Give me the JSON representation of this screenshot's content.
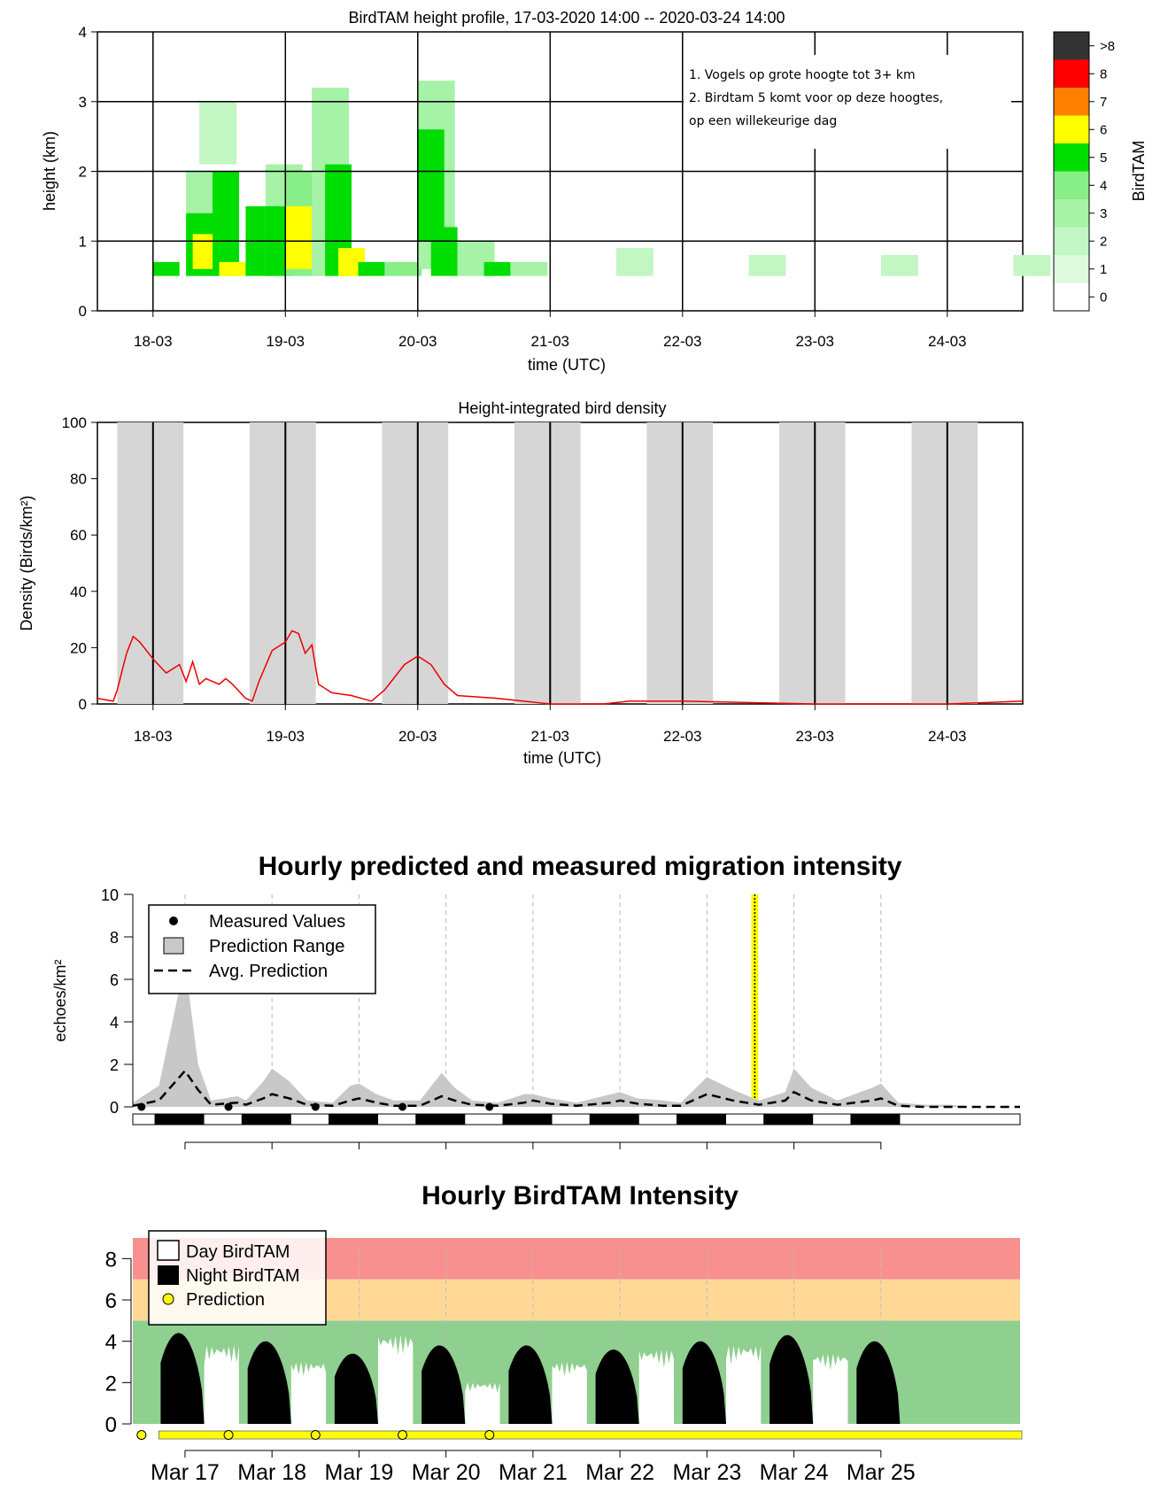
{
  "chart_data": [
    {
      "type": "heatmap",
      "title": "BirdTAM height profile, 17-03-2020 14:00  --  2020-03-24 14:00",
      "xlabel": "time (UTC)",
      "ylabel": "height (km)",
      "x_ticks": [
        "18-03",
        "19-03",
        "20-03",
        "21-03",
        "22-03",
        "23-03",
        "24-03"
      ],
      "y_ticks": [
        "0",
        "1",
        "2",
        "3",
        "4"
      ],
      "ylim": [
        0,
        4
      ],
      "grid": true,
      "colorbar": {
        "label": "BirdTAM",
        "levels": [
          ">8",
          "8",
          "7",
          "6",
          "5",
          "4",
          "3",
          "2",
          "1",
          "0"
        ],
        "colors": [
          "#333333",
          "#ff0000",
          "#ff8000",
          "#ffff00",
          "#00dd00",
          "#88ee88",
          "#a6f2a6",
          "#c2f6c2",
          "#def9de",
          "#ffffff"
        ]
      },
      "annotations": [
        "1. Vogels op grote hoogte tot 3+ km",
        "2. Birdtam 5 komt voor op deze hoogtes,",
        "op een willekeurige dag"
      ],
      "cells": [
        {
          "t": 0.0,
          "h0": 0.5,
          "h1": 0.7,
          "level": 5
        },
        {
          "t": 0.25,
          "h0": 0.5,
          "h1": 2.0,
          "level": 3
        },
        {
          "t": 0.25,
          "h0": 0.5,
          "h1": 1.4,
          "level": 5
        },
        {
          "t": 0.3,
          "h0": 0.6,
          "h1": 1.1,
          "level": 6
        },
        {
          "t": 0.35,
          "h0": 2.1,
          "h1": 3.0,
          "level": 2
        },
        {
          "t": 0.45,
          "h0": 0.5,
          "h1": 2.0,
          "level": 5
        },
        {
          "t": 0.5,
          "h0": 0.5,
          "h1": 0.7,
          "level": 6
        },
        {
          "t": 0.7,
          "h0": 0.5,
          "h1": 1.5,
          "level": 5
        },
        {
          "t": 0.85,
          "h0": 0.5,
          "h1": 2.1,
          "level": 3
        },
        {
          "t": 0.85,
          "h0": 0.5,
          "h1": 1.5,
          "level": 5
        },
        {
          "t": 1.0,
          "h0": 0.5,
          "h1": 2.0,
          "level": 4
        },
        {
          "t": 1.0,
          "h0": 0.6,
          "h1": 1.5,
          "level": 6
        },
        {
          "t": 1.2,
          "h0": 0.5,
          "h1": 3.2,
          "level": 3
        },
        {
          "t": 1.3,
          "h0": 0.5,
          "h1": 2.1,
          "level": 5
        },
        {
          "t": 1.4,
          "h0": 0.5,
          "h1": 0.9,
          "level": 6
        },
        {
          "t": 1.55,
          "h0": 0.5,
          "h1": 0.7,
          "level": 5
        },
        {
          "t": 1.75,
          "h0": 0.5,
          "h1": 0.7,
          "level": 4
        },
        {
          "t": 2.0,
          "h0": 0.6,
          "h1": 3.3,
          "level": 3
        },
        {
          "t": 2.0,
          "h0": 1.0,
          "h1": 2.6,
          "level": 5
        },
        {
          "t": 2.1,
          "h0": 0.5,
          "h1": 1.2,
          "level": 5
        },
        {
          "t": 2.3,
          "h0": 0.5,
          "h1": 1.0,
          "level": 3
        },
        {
          "t": 2.5,
          "h0": 0.5,
          "h1": 0.7,
          "level": 5
        },
        {
          "t": 2.7,
          "h0": 0.5,
          "h1": 0.7,
          "level": 3
        },
        {
          "t": 3.5,
          "h0": 0.5,
          "h1": 0.9,
          "level": 2
        },
        {
          "t": 4.5,
          "h0": 0.5,
          "h1": 0.8,
          "level": 2
        },
        {
          "t": 5.5,
          "h0": 0.5,
          "h1": 0.8,
          "level": 2
        },
        {
          "t": 6.5,
          "h0": 0.5,
          "h1": 0.8,
          "level": 2
        }
      ]
    },
    {
      "type": "line",
      "title": "Height-integrated bird density",
      "xlabel": "time (UTC)",
      "ylabel": "Density (Birds/km²)",
      "x_ticks": [
        "18-03",
        "19-03",
        "20-03",
        "21-03",
        "22-03",
        "23-03",
        "24-03"
      ],
      "y_ticks": [
        "0",
        "20",
        "40",
        "60",
        "80",
        "100"
      ],
      "ylim": [
        0,
        100
      ],
      "night_bands": [
        [
          -0.27,
          0.23
        ],
        [
          0.73,
          1.23
        ],
        [
          1.73,
          2.23
        ],
        [
          2.73,
          3.23
        ],
        [
          3.73,
          4.23
        ],
        [
          4.73,
          5.23
        ],
        [
          5.73,
          6.23
        ]
      ],
      "series": [
        {
          "color": "#ee0000",
          "x": [
            -0.42,
            -0.3,
            -0.27,
            -0.2,
            -0.15,
            -0.1,
            -0.05,
            0.0,
            0.1,
            0.2,
            0.25,
            0.3,
            0.35,
            0.4,
            0.45,
            0.5,
            0.55,
            0.6,
            0.7,
            0.75,
            0.8,
            0.9,
            1.0,
            1.05,
            1.1,
            1.15,
            1.2,
            1.25,
            1.35,
            1.5,
            1.65,
            1.75,
            1.9,
            2.0,
            2.1,
            2.2,
            2.3,
            2.6,
            3.0,
            3.2,
            3.4,
            3.6,
            4.0,
            5.0,
            6.0,
            6.57
          ],
          "y": [
            2,
            1,
            5,
            18,
            24,
            22,
            19,
            16,
            11,
            14,
            8,
            15,
            7,
            9,
            8,
            7,
            9,
            7,
            2,
            1,
            8,
            19,
            22,
            26,
            25,
            18,
            21,
            7,
            4,
            3,
            1,
            5,
            14,
            17,
            14,
            7,
            3,
            2,
            0,
            0,
            0,
            1,
            1,
            0,
            0,
            1
          ]
        }
      ]
    },
    {
      "type": "area",
      "title": "Hourly predicted and measured migration intensity",
      "ylabel": "echoes/km²",
      "y_ticks": [
        "0",
        "2",
        "4",
        "6",
        "8",
        "10"
      ],
      "ylim": [
        0,
        10
      ],
      "legend": {
        "placement": "top-left",
        "items": [
          "Measured Values",
          "Prediction Range",
          "Avg. Prediction"
        ]
      },
      "current_time_marker": 6.55,
      "x": [
        -0.6,
        -0.3,
        0.0,
        0.15,
        0.3,
        0.6,
        0.7,
        0.9,
        1.0,
        1.2,
        1.4,
        1.7,
        1.9,
        2.0,
        2.2,
        2.4,
        2.7,
        2.95,
        3.1,
        3.3,
        3.6,
        3.9,
        4.0,
        4.2,
        4.5,
        4.9,
        5.0,
        5.2,
        5.5,
        5.7,
        6.0,
        6.3,
        6.6,
        6.9,
        7.0,
        7.2,
        7.5,
        7.9,
        8.0,
        8.2,
        8.5,
        8.8,
        9.0,
        9.3,
        9.6
      ],
      "series": [
        {
          "name": "Measured Values",
          "x": [
            -0.5,
            0.5,
            1.5,
            2.5,
            3.5
          ],
          "values": [
            0.0,
            0.0,
            0.0,
            0.0,
            0.0
          ]
        },
        {
          "name": "Prediction Range",
          "low": [
            0,
            0,
            0,
            0,
            0,
            0,
            0,
            0,
            0,
            0,
            0,
            0,
            0,
            0,
            0,
            0,
            0,
            0,
            0,
            0,
            0,
            0,
            0,
            0,
            0,
            0,
            0,
            0,
            0,
            0,
            0,
            0,
            0,
            0,
            0,
            0,
            0,
            0,
            0,
            0,
            0,
            0,
            0,
            0,
            0
          ],
          "high": [
            0.2,
            1.0,
            6.8,
            2.0,
            0.3,
            0.5,
            0.3,
            1.2,
            1.8,
            1.2,
            0.3,
            0.2,
            1.0,
            1.1,
            0.6,
            0.3,
            0.3,
            1.6,
            0.9,
            0.3,
            0.2,
            0.6,
            0.6,
            0.4,
            0.2,
            0.6,
            0.7,
            0.4,
            0.3,
            0.2,
            1.4,
            0.8,
            0.3,
            0.7,
            1.8,
            0.9,
            0.3,
            0.9,
            1.1,
            0.2,
            0.1,
            0.1,
            0.0,
            0.0,
            0.0
          ]
        },
        {
          "name": "Avg. Prediction",
          "values": [
            0.05,
            0.3,
            1.7,
            0.8,
            0.1,
            0.2,
            0.1,
            0.4,
            0.6,
            0.4,
            0.1,
            0.05,
            0.3,
            0.4,
            0.2,
            0.05,
            0.05,
            0.5,
            0.3,
            0.1,
            0.05,
            0.2,
            0.3,
            0.15,
            0.05,
            0.2,
            0.3,
            0.15,
            0.05,
            0.05,
            0.6,
            0.3,
            0.1,
            0.3,
            0.7,
            0.3,
            0.1,
            0.3,
            0.4,
            0.05,
            0.0,
            0.0,
            0.0,
            0.0,
            0.0
          ]
        }
      ]
    },
    {
      "type": "bar",
      "title": "Hourly BirdTAM Intensity",
      "x_ticks": [
        "Mar 17",
        "Mar 18",
        "Mar 19",
        "Mar 20",
        "Mar 21",
        "Mar 22",
        "Mar 23",
        "Mar 24",
        "Mar 25"
      ],
      "y_ticks": [
        "0",
        "2",
        "4",
        "6",
        "8"
      ],
      "ylim": [
        0,
        9
      ],
      "legend": {
        "placement": "top-left",
        "items": [
          "Day BirdTAM",
          "Night BirdTAM",
          "Prediction"
        ]
      },
      "bands": [
        {
          "from": 0,
          "to": 5,
          "color": "#8fcf8f"
        },
        {
          "from": 5,
          "to": 7,
          "color": "#ffd896"
        },
        {
          "from": 7,
          "to": 9,
          "color": "#f99090"
        }
      ],
      "prediction_points": 9,
      "night_peaks": [
        4.4,
        4.0,
        3.4,
        3.8,
        3.8,
        3.6,
        4.0,
        4.3,
        4.0
      ],
      "day_levels": [
        3.8,
        3.0,
        4.3,
        2.0,
        3.0,
        3.6,
        3.8,
        3.4
      ]
    }
  ]
}
